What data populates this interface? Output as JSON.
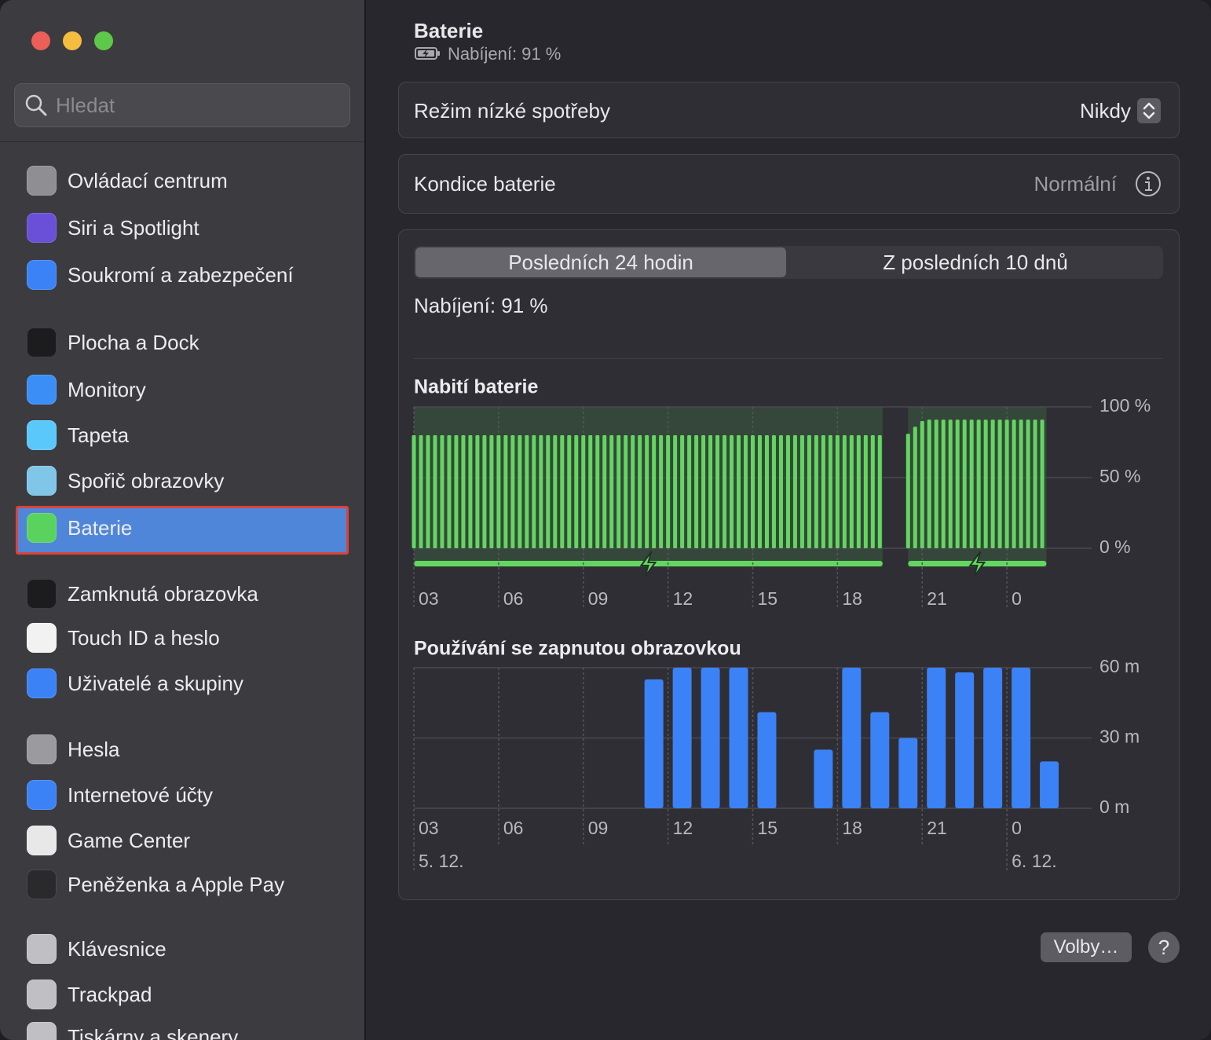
{
  "search": {
    "placeholder": "Hledat"
  },
  "sidebar": {
    "items": [
      {
        "label": "Ovládací centrum"
      },
      {
        "label": "Siri a Spotlight"
      },
      {
        "label": "Soukromí a zabezpečení"
      },
      {
        "label": "Plocha a Dock"
      },
      {
        "label": "Monitory"
      },
      {
        "label": "Tapeta"
      },
      {
        "label": "Spořič obrazovky"
      },
      {
        "label": "Baterie",
        "selected": true
      },
      {
        "label": "Zamknutá obrazovka"
      },
      {
        "label": "Touch ID a heslo"
      },
      {
        "label": "Uživatelé a skupiny"
      },
      {
        "label": "Hesla"
      },
      {
        "label": "Internetové účty"
      },
      {
        "label": "Game Center"
      },
      {
        "label": "Peněženka a Apple Pay"
      },
      {
        "label": "Klávesnice"
      },
      {
        "label": "Trackpad"
      },
      {
        "label": "Tiskárny a skenery"
      }
    ]
  },
  "header": {
    "title": "Baterie",
    "status": "Nabíjení: 91 %"
  },
  "settings": [
    {
      "label": "Režim nízké spotřeby",
      "value": "Nikdy"
    },
    {
      "label": "Kondice baterie",
      "value": "Normální"
    }
  ],
  "tabs": [
    {
      "label": "Posledních 24 hodin",
      "active": true
    },
    {
      "label": "Z posledních 10 dnů"
    }
  ],
  "charge_status": "Nabíjení: 91 %",
  "chart_data": [
    {
      "type": "bar",
      "title": "Nabití baterie",
      "x": [
        3,
        3.25,
        3.5,
        3.75,
        4,
        4.25,
        4.5,
        4.75,
        5,
        5.25,
        5.5,
        5.75,
        6,
        6.25,
        6.5,
        6.75,
        7,
        7.25,
        7.5,
        7.75,
        8,
        8.25,
        8.5,
        8.75,
        9,
        9.25,
        9.5,
        9.75,
        10,
        10.25,
        10.5,
        10.75,
        11,
        11.25,
        11.5,
        11.75,
        12,
        12.25,
        12.5,
        12.75,
        13,
        13.25,
        13.5,
        13.75,
        14,
        14.25,
        14.5,
        14.75,
        15,
        15.25,
        15.5,
        15.75,
        16,
        16.25,
        16.5,
        16.75,
        17,
        17.25,
        17.5,
        17.75,
        18,
        18.25,
        18.5,
        18.75,
        19,
        19.25,
        19.5,
        20.5,
        20.75,
        21,
        21.25,
        21.5,
        21.75,
        22,
        22.25,
        22.5,
        22.75,
        23,
        23.25,
        23.5,
        23.75,
        24,
        24.25,
        24.5,
        24.75,
        25,
        25.25
      ],
      "series": [
        {
          "name": "Nabití baterie",
          "color": "#63d660",
          "values": [
            80,
            80,
            80,
            80,
            80,
            80,
            80,
            80,
            80,
            80,
            80,
            80,
            80,
            80,
            80,
            80,
            80,
            80,
            80,
            80,
            80,
            80,
            80,
            80,
            80,
            80,
            80,
            80,
            80,
            80,
            80,
            80,
            80,
            80,
            80,
            80,
            80,
            80,
            80,
            80,
            80,
            80,
            80,
            80,
            80,
            80,
            80,
            80,
            80,
            80,
            80,
            80,
            80,
            80,
            80,
            80,
            80,
            80,
            80,
            80,
            80,
            80,
            80,
            80,
            80,
            80,
            80,
            81,
            86,
            90,
            91,
            91,
            91,
            91,
            91,
            91,
            91,
            91,
            91,
            91,
            91,
            91,
            91,
            91,
            91,
            91,
            91
          ]
        }
      ],
      "charging_periods": [
        [
          3,
          19.6
        ],
        [
          20.5,
          25.4
        ]
      ],
      "charging_color": "#63d660",
      "xlim": [
        3,
        27
      ],
      "xticks": [
        {
          "value": 3,
          "label": "03"
        },
        {
          "value": 6,
          "label": "06"
        },
        {
          "value": 9,
          "label": "09"
        },
        12,
        15,
        18,
        21,
        {
          "value": 24,
          "label": "0"
        }
      ],
      "ylim": [
        0,
        100
      ],
      "yticks": [
        {
          "value": 0,
          "label": "0 %"
        },
        {
          "value": 50,
          "label": "50 %"
        },
        {
          "value": 100,
          "label": "100 %"
        }
      ],
      "grid": true
    },
    {
      "type": "bar",
      "title": "Používání se zapnutou obrazovkou",
      "x": [
        11.5,
        12.5,
        13.5,
        14.5,
        15.5,
        16.5,
        17.5,
        18.5,
        19.5,
        20.5,
        21.5,
        22.5,
        23.5,
        24.5,
        25.5
      ],
      "series": [
        {
          "name": "Používání se zapnutou obrazovkou",
          "color": "#3b82f6",
          "values": [
            55,
            60,
            60,
            60,
            41,
            0,
            25,
            60,
            41,
            30,
            60,
            58,
            60,
            60,
            20
          ]
        }
      ],
      "xlim": [
        3,
        27
      ],
      "xticks": [
        {
          "value": 3,
          "label": "03"
        },
        {
          "value": 6,
          "label": "06"
        },
        {
          "value": 9,
          "label": "09"
        },
        12,
        15,
        18,
        21,
        {
          "value": 24,
          "label": "0"
        }
      ],
      "date_labels": [
        {
          "value": 3,
          "label": "5. 12."
        },
        {
          "value": 24,
          "label": "6. 12."
        }
      ],
      "ylim": [
        0,
        60
      ],
      "yticks": [
        {
          "value": 0,
          "label": "0 m"
        },
        {
          "value": 30,
          "label": "30 m"
        },
        {
          "value": 60,
          "label": "60 m"
        }
      ],
      "grid": true
    }
  ],
  "buttons": {
    "options": "Volby…",
    "help": "?"
  }
}
